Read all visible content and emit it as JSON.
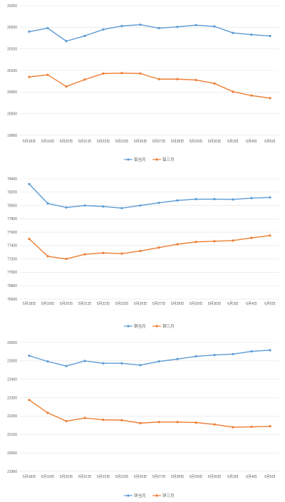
{
  "colors": {
    "series_a": "#5b9bd5",
    "series_b": "#ed7d31",
    "grid": "#e3e3e3",
    "text": "#595959"
  },
  "chart_data": [
    {
      "type": "line",
      "categories": [
        "5月18日",
        "5月19日",
        "5月20日",
        "5月21日",
        "5月22日",
        "5月23日",
        "5月26日",
        "5月27日",
        "5月28日",
        "5月29日",
        "5月30日",
        "6月3日",
        "6月4日",
        "6月5日"
      ],
      "ylim": [
        19950,
        20250
      ],
      "yticks": [
        19950,
        20000,
        20050,
        20100,
        20150,
        20200,
        20250
      ],
      "grid": true,
      "legend": "bottom",
      "series": [
        {
          "name": "铝当月",
          "color": "#5b9bd5",
          "values": [
            20190,
            20198,
            20168,
            20180,
            20195,
            20203,
            20206,
            20198,
            20201,
            20205,
            20202,
            20187,
            20183,
            20180
          ]
        },
        {
          "name": "铝三月",
          "color": "#ed7d31",
          "values": [
            20085,
            20090,
            20063,
            20079,
            20093,
            20094,
            20093,
            20080,
            20080,
            20078,
            20070,
            20051,
            20042,
            20036
          ]
        }
      ]
    },
    {
      "type": "line",
      "categories": [
        "5月18日",
        "5月19日",
        "5月20日",
        "5月21日",
        "5月22日",
        "5月23日",
        "5月26日",
        "5月27日",
        "5月28日",
        "5月29日",
        "5月30日",
        "6月3日",
        "6月4日",
        "6月5日"
      ],
      "ylim": [
        76600,
        78400
      ],
      "yticks": [
        76600,
        76800,
        77000,
        77200,
        77400,
        77600,
        77800,
        78000,
        78200,
        78400
      ],
      "grid": true,
      "legend": "bottom",
      "series": [
        {
          "name": "铜当月",
          "color": "#5b9bd5",
          "values": [
            78320,
            78030,
            77970,
            78000,
            77985,
            77960,
            78000,
            78040,
            78075,
            78095,
            78095,
            78090,
            78110,
            78120
          ]
        },
        {
          "name": "铜三月",
          "color": "#ed7d31",
          "values": [
            77500,
            77240,
            77200,
            77270,
            77290,
            77280,
            77320,
            77370,
            77420,
            77455,
            77465,
            77475,
            77515,
            77550
          ]
        }
      ]
    },
    {
      "type": "line",
      "categories": [
        "5月18日",
        "5月19日",
        "5月20日",
        "5月21日",
        "5月22日",
        "5月23日",
        "5月26日",
        "5月27日",
        "5月28日",
        "5月29日",
        "5月30日",
        "6月3日",
        "6月4日",
        "6月5日"
      ],
      "ylim": [
        21900,
        22600
      ],
      "yticks": [
        21900,
        22000,
        22100,
        22200,
        22300,
        22400,
        22500,
        22600
      ],
      "grid": true,
      "legend": "bottom",
      "series": [
        {
          "name": "锌当月",
          "color": "#5b9bd5",
          "values": [
            22528,
            22497,
            22472,
            22500,
            22487,
            22487,
            22477,
            22497,
            22510,
            22525,
            22532,
            22537,
            22552,
            22558
          ]
        },
        {
          "name": "锌三月",
          "color": "#ed7d31",
          "values": [
            22288,
            22218,
            22173,
            22190,
            22180,
            22178,
            22162,
            22168,
            22168,
            22165,
            22155,
            22140,
            22142,
            22145
          ]
        }
      ]
    }
  ]
}
